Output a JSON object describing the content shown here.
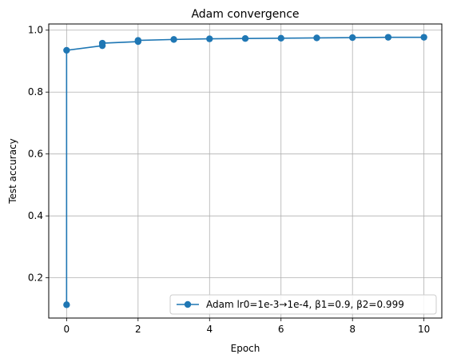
{
  "chart_data": {
    "type": "line",
    "title": "Adam convergence",
    "xlabel": "Epoch",
    "ylabel": "Test accuracy",
    "xlim": [
      -0.5,
      10.5
    ],
    "ylim": [
      0.07,
      1.02
    ],
    "xticks": [
      0,
      2,
      4,
      6,
      8,
      10
    ],
    "yticks": [
      0.2,
      0.4,
      0.6,
      0.8,
      1.0
    ],
    "xtick_labels": [
      "0",
      "2",
      "4",
      "6",
      "8",
      "10"
    ],
    "ytick_labels": [
      "0.2",
      "0.4",
      "0.6",
      "0.8",
      "1.0"
    ],
    "grid": true,
    "legend_position": "lower-right",
    "series": [
      {
        "name": "Adam lr0=1e-3→1e-4, β1=0.9, β2=0.999",
        "color": "#1f77b4",
        "x": [
          0,
          0,
          1,
          1,
          2,
          2,
          3,
          4,
          5,
          6,
          7,
          8,
          9,
          10
        ],
        "y": [
          0.113,
          0.935,
          0.95,
          0.958,
          0.963,
          0.967,
          0.97,
          0.972,
          0.973,
          0.974,
          0.975,
          0.976,
          0.977,
          0.977
        ]
      }
    ]
  }
}
